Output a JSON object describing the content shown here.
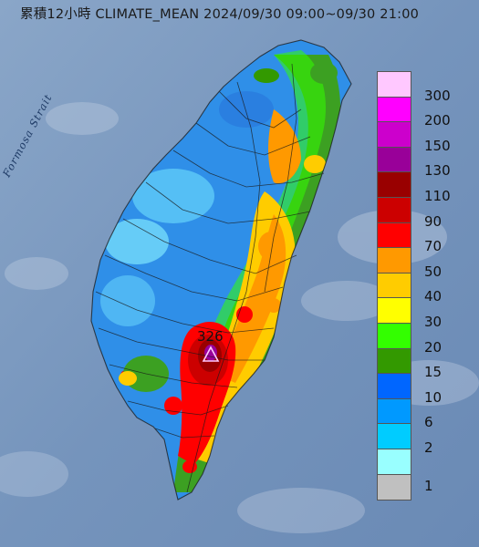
{
  "title": "累積12小時 CLIMATE_MEAN 2024/09/30 09:00~09/30 21:00",
  "map_label": "Formosa Strait",
  "peak_value": "326",
  "legend": {
    "ticks": [
      "300",
      "200",
      "150",
      "130",
      "110",
      "90",
      "70",
      "50",
      "40",
      "30",
      "20",
      "15",
      "10",
      "6",
      "2",
      "1"
    ],
    "colors": [
      "#ffc8ff",
      "#ff00ff",
      "#cc00cc",
      "#990099",
      "#990000",
      "#cc0000",
      "#ff0000",
      "#ff9900",
      "#ffcc00",
      "#ffff00",
      "#33ff00",
      "#339900",
      "#0066ff",
      "#0099ff",
      "#00ccff",
      "#99ffff",
      "#c0c0c0"
    ]
  },
  "colors": {
    "sea": "#7f9cc0",
    "land_rain_low": "#2f8fe8",
    "land_rain_mid": "#3ca022",
    "land_rain_high": "#ff9900",
    "peak": "#990099"
  }
}
